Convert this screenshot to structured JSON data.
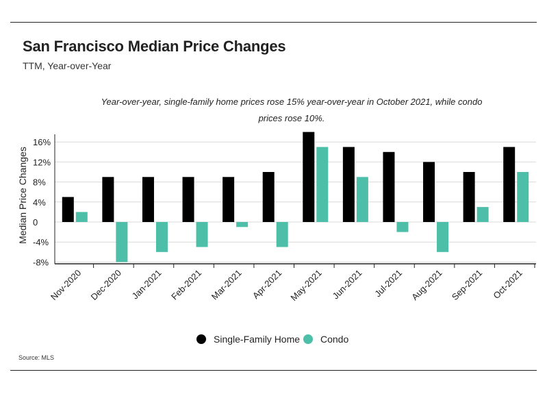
{
  "title": "San Francisco Median Price Changes",
  "subtitle": "TTM, Year-over-Year",
  "source": "Source:  MLS",
  "colors": {
    "sfh": "#000000",
    "condo": "#4dbfa8",
    "grid": "#d9d9d9",
    "axis": "#222222"
  },
  "chart_data": {
    "type": "bar",
    "categories": [
      "Nov-2020",
      "Dec-2020",
      "Jan-2021",
      "Feb-2021",
      "Mar-2021",
      "Apr-2021",
      "May-2021",
      "Jun-2021",
      "Jul-2021",
      "Aug-2021",
      "Sep-2021",
      "Oct-2021"
    ],
    "series": [
      {
        "name": "Single-Family Home",
        "values": [
          5,
          9,
          9,
          9,
          9,
          10,
          18,
          15,
          14,
          12,
          10,
          15
        ]
      },
      {
        "name": "Condo",
        "values": [
          2,
          -8,
          -6,
          -5,
          -1,
          -5,
          15,
          9,
          -2,
          -6,
          3,
          10
        ]
      }
    ],
    "ylabel": "Median Price Changes",
    "xlabel": "",
    "ylim": [
      -8,
      18
    ],
    "yticks": [
      16,
      12,
      8,
      4,
      0,
      -4,
      -8
    ],
    "ytick_labels": [
      "16%",
      "12%",
      "8%",
      "4%",
      "0",
      "-4%",
      "-8%"
    ],
    "grid": true,
    "legend": "bottom",
    "annotation": [
      "Year-over-year, single-family home prices rose 15% year-over-year in October 2021, while condo",
      "prices rose 10%."
    ]
  }
}
